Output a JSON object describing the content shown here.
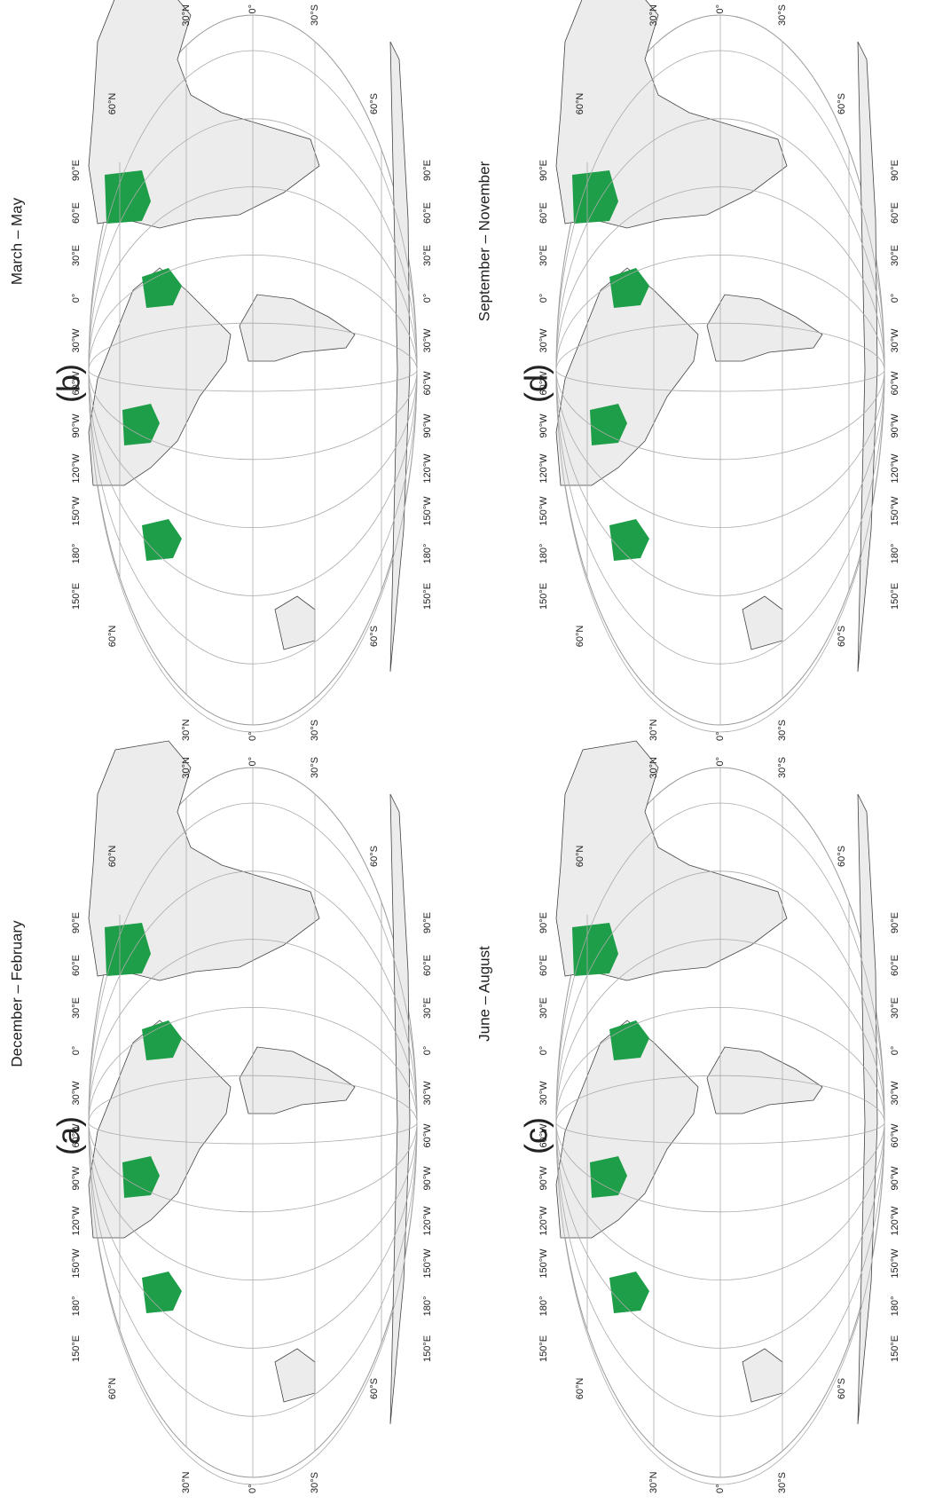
{
  "panels": [
    {
      "label": "(a)",
      "title": "December – February"
    },
    {
      "label": "(b)",
      "title": "March – May"
    },
    {
      "label": "(c)",
      "title": "June – August"
    },
    {
      "label": "(d)",
      "title": "September – November"
    }
  ],
  "lon_labels": [
    "150°E",
    "180°",
    "150°W",
    "120°W",
    "90°W",
    "60°W",
    "30°W",
    "0°",
    "30°E",
    "60°E",
    "90°E"
  ],
  "lat_labels": [
    "60°N",
    "30°N",
    "0°",
    "30°S",
    "60°S"
  ]
}
